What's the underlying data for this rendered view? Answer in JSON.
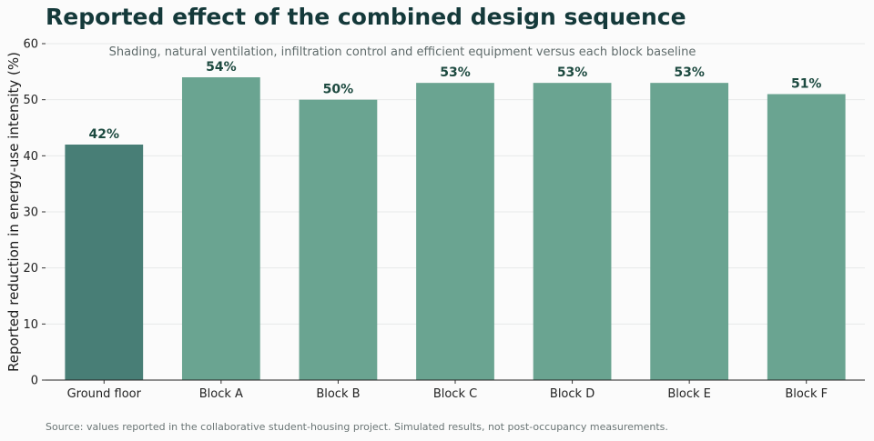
{
  "chart_data": {
    "type": "bar",
    "title": "Reported effect of the combined design sequence",
    "subtitle": "Shading, natural ventilation, infiltration control and efficient equipment versus each block baseline",
    "ylabel": "Reported reduction in energy-use intensity (%)",
    "xlabel": "",
    "categories": [
      "Ground floor",
      "Block A",
      "Block B",
      "Block C",
      "Block D",
      "Block E",
      "Block F"
    ],
    "values": [
      42,
      54,
      50,
      53,
      53,
      53,
      51
    ],
    "data_labels": [
      "42%",
      "54%",
      "50%",
      "53%",
      "53%",
      "53%",
      "51%"
    ],
    "ylim": [
      0,
      60
    ],
    "yticks": [
      0,
      10,
      20,
      30,
      40,
      50,
      60
    ],
    "grid": "horizontal",
    "legend": "none",
    "colors": {
      "highlight_bar": "#487e76",
      "bar": "#6aa491",
      "label_text": "#1d4a40",
      "title": "#14393a"
    }
  },
  "source_note": "Source: values reported in the collaborative student-housing project. Simulated results, not post-occupancy measurements."
}
